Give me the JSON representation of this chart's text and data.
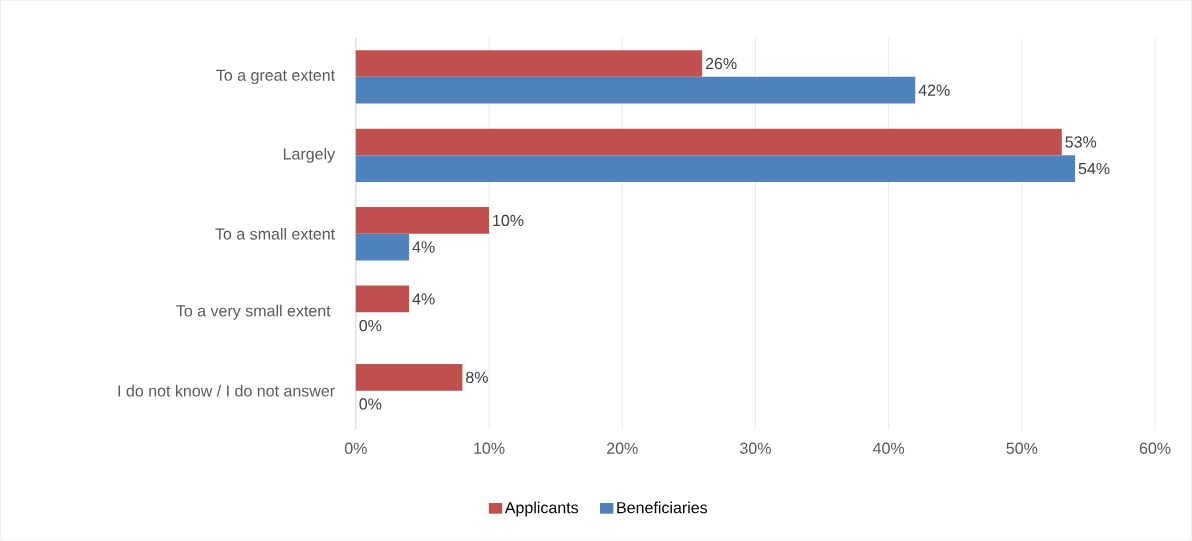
{
  "chart_data": {
    "type": "bar",
    "orientation": "horizontal",
    "categories": [
      "To a great extent",
      "Largely",
      "To a small extent",
      "To a very small extent ",
      "I do not know / I do not answer"
    ],
    "series": [
      {
        "name": "Applicants",
        "color": "#c0504d",
        "values": [
          26,
          53,
          10,
          4,
          8
        ],
        "value_labels": [
          "26%",
          "53%",
          "10%",
          "4%",
          "8%"
        ]
      },
      {
        "name": "Beneficiaries",
        "color": "#4f81bd",
        "values": [
          42,
          54,
          4,
          0,
          0
        ],
        "value_labels": [
          "42%",
          "54%",
          "4%",
          "0%",
          "0%"
        ]
      }
    ],
    "xlim": [
      0,
      60
    ],
    "xticks": [
      {
        "value": 0,
        "label": "0%"
      },
      {
        "value": 10,
        "label": "10%"
      },
      {
        "value": 20,
        "label": "20%"
      },
      {
        "value": 30,
        "label": "30%"
      },
      {
        "value": 40,
        "label": "40%"
      },
      {
        "value": 50,
        "label": "50%"
      },
      {
        "value": 60,
        "label": "60%"
      }
    ],
    "grid": "x",
    "legend": "bottom"
  }
}
